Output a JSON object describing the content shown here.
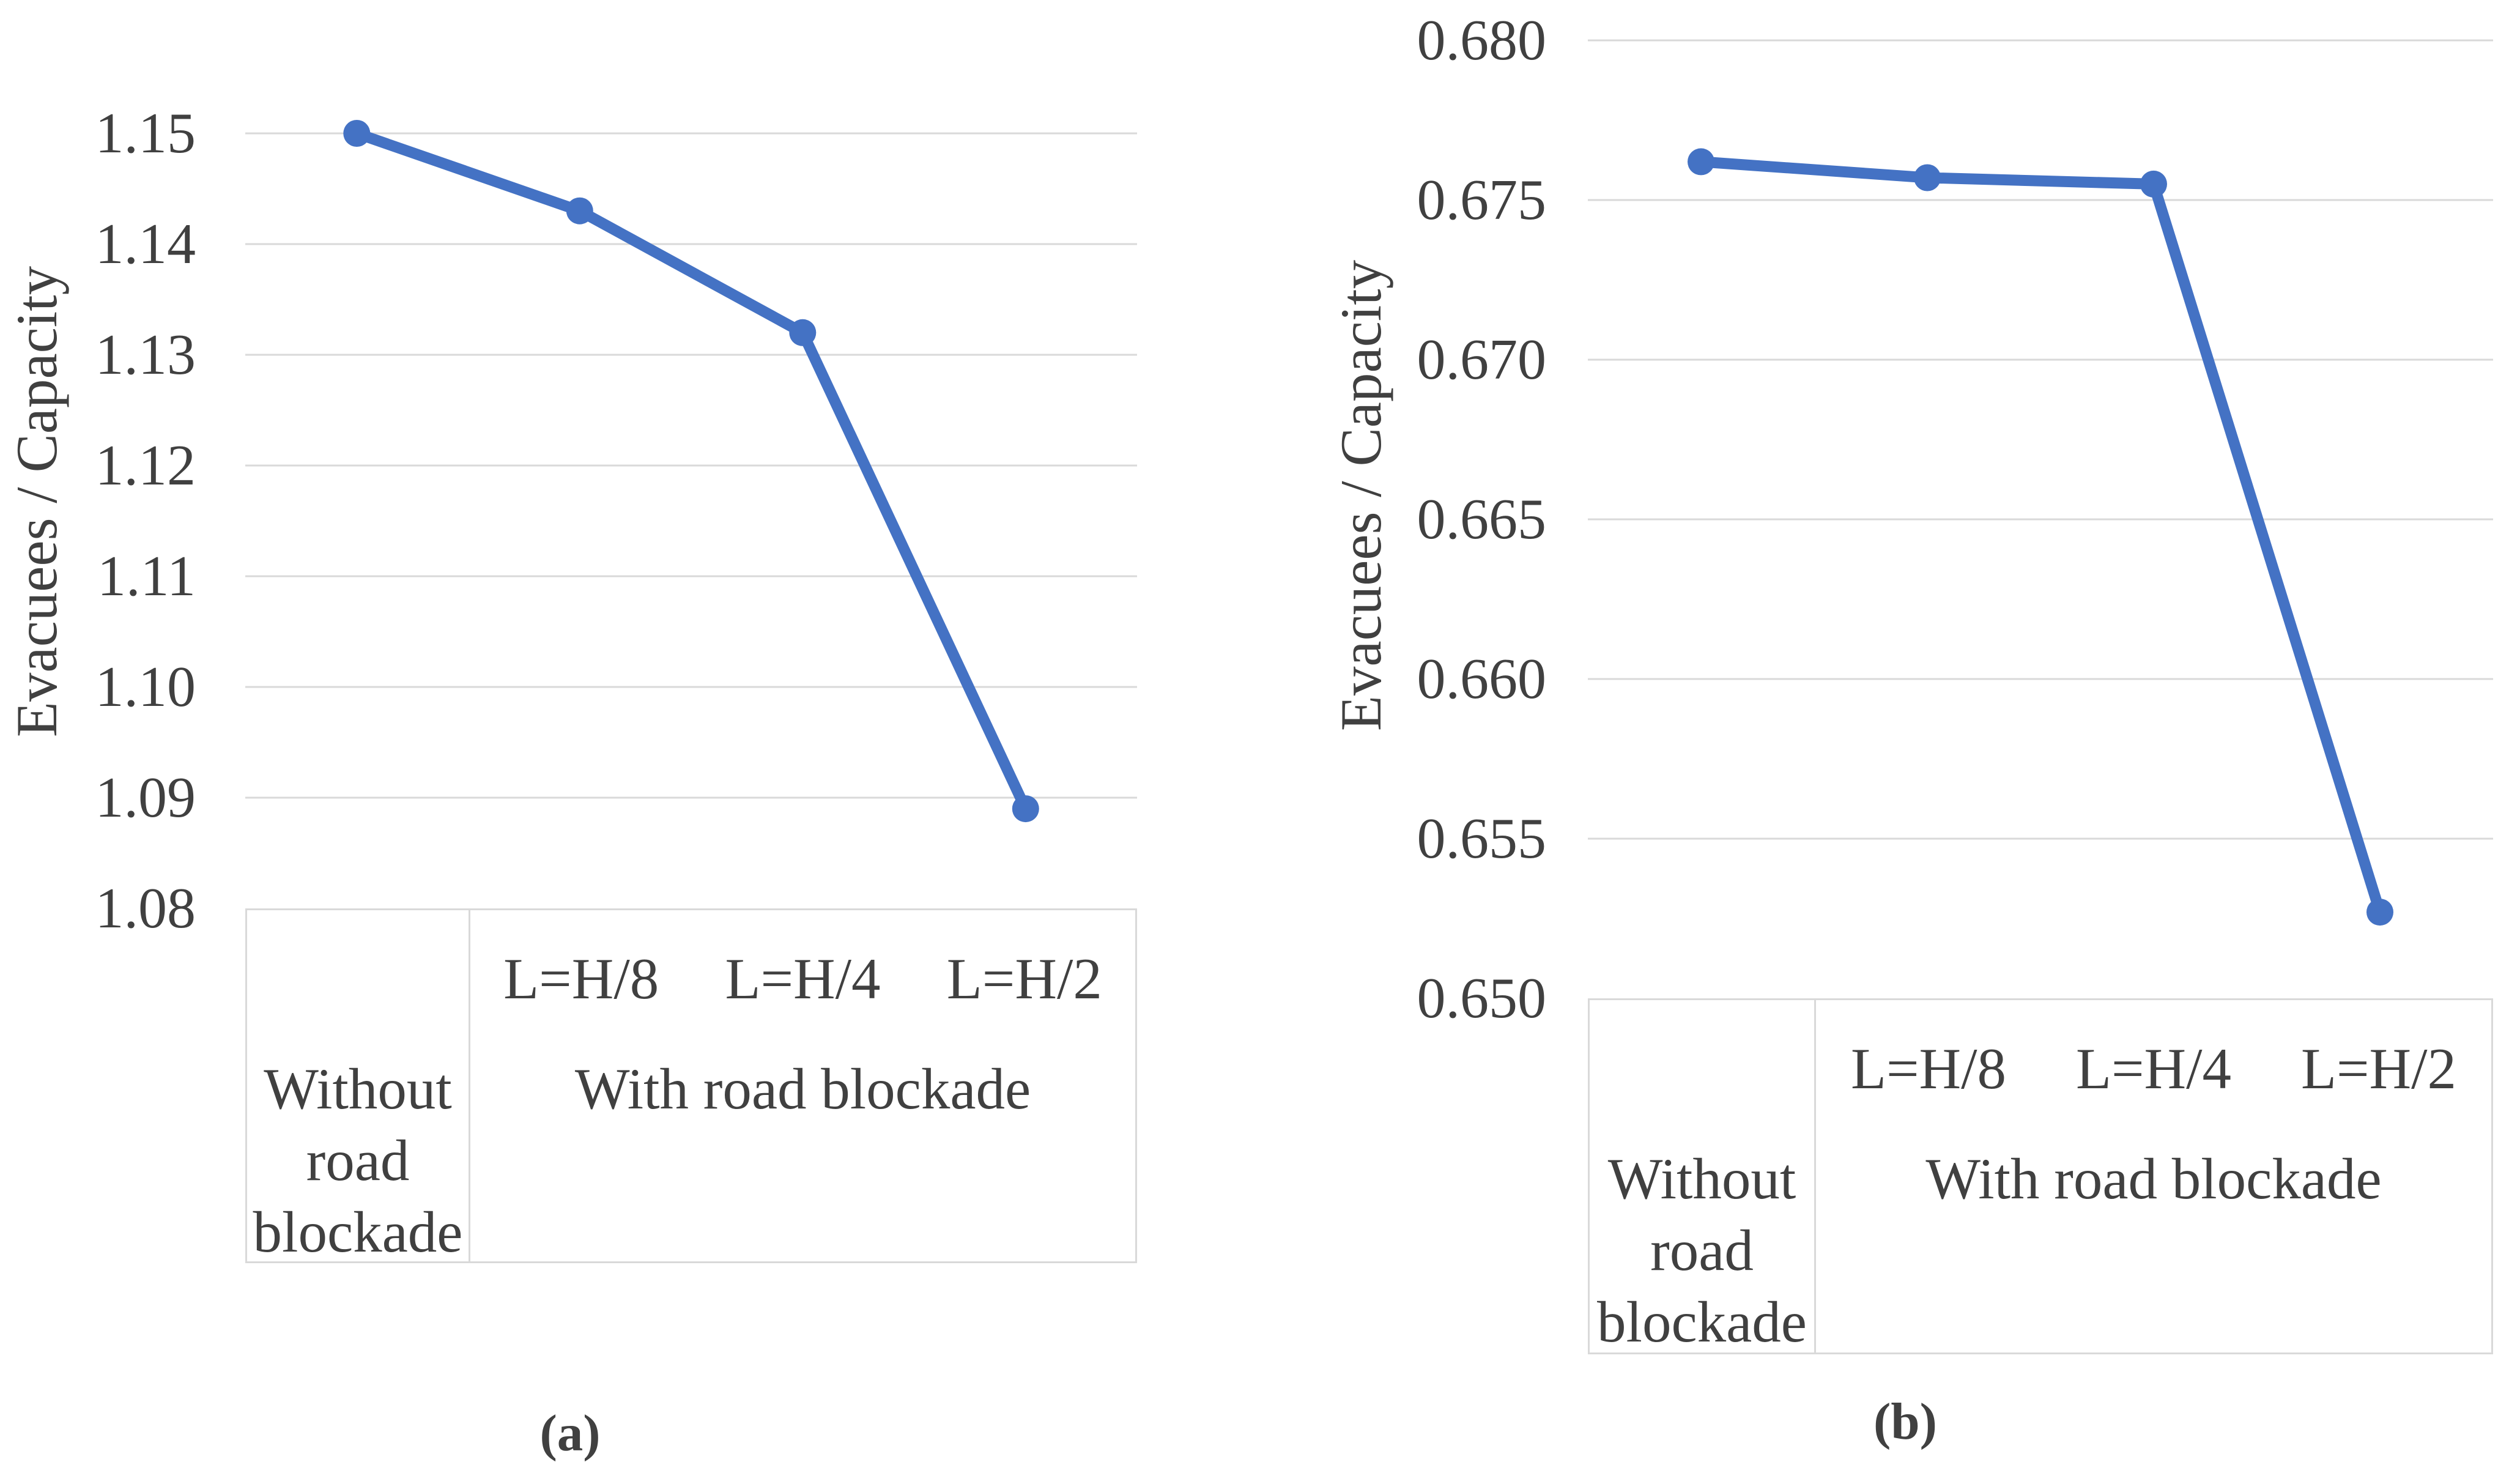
{
  "figure": {
    "captions": [
      "(a)",
      "(b)"
    ]
  },
  "chart_data": [
    {
      "type": "line",
      "caption": "(a)",
      "title": "",
      "ylabel": "Evacuees / Capacity",
      "categories": [
        "Without road blockade",
        "L=H/8",
        "L=H/4",
        "L=H/2"
      ],
      "values": [
        1.15,
        1.143,
        1.132,
        1.089
      ],
      "ylim": [
        1.08,
        1.15
      ],
      "ytick_labels": [
        "1.15",
        "1.14",
        "1.13",
        "1.12",
        "1.11",
        "1.10",
        "1.09",
        "1.08"
      ],
      "x_axis_group_labels": {
        "without": "Without road blockade",
        "with": "With road blockade",
        "sub_labels": [
          "L=H/8",
          "L=H/4",
          "L=H/2"
        ]
      },
      "grid": true,
      "legend": "none",
      "line_color": "#4472C4",
      "gridline_color": "#D9D9D9",
      "text_color": "#404040"
    },
    {
      "type": "line",
      "caption": "(b)",
      "title": "",
      "ylabel": "Evacuees / Capacity",
      "categories": [
        "Without road blockade",
        "L=H/8",
        "L=H/4",
        "L=H/2"
      ],
      "values": [
        0.6762,
        0.6757,
        0.6755,
        0.6527
      ],
      "ylim": [
        0.65,
        0.68
      ],
      "ytick_labels": [
        "0.680",
        "0.675",
        "0.670",
        "0.665",
        "0.660",
        "0.655",
        "0.650"
      ],
      "x_axis_group_labels": {
        "without": "Without road blockade",
        "with": "With road blockade",
        "sub_labels": [
          "L=H/8",
          "L=H/4",
          "L=H/2"
        ]
      },
      "grid": true,
      "legend": "none",
      "line_color": "#4472C4",
      "gridline_color": "#D9D9D9",
      "text_color": "#404040"
    }
  ]
}
